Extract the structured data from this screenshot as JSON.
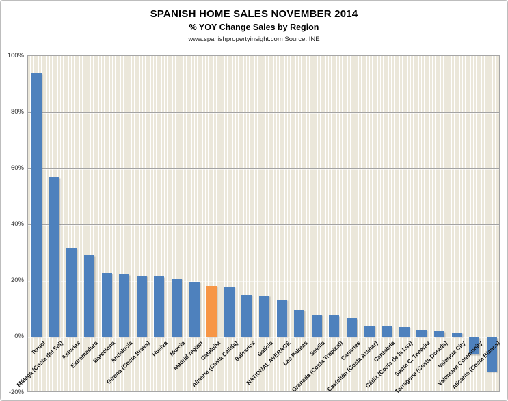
{
  "header": {
    "title": "SPANISH HOME SALES NOVEMBER 2014",
    "subtitle": "% YOY Change Sales by Region",
    "source": "www.spanishpropertyinsight.com Source: INE"
  },
  "chart_data": {
    "type": "bar",
    "title": "SPANISH HOME SALES NOVEMBER 2014",
    "subtitle": "% YOY Change Sales by Region",
    "source_note": "www.spanishpropertyinsight.com Source: INE",
    "categories": [
      "Teruel",
      "Málaga (Costa del Sol)",
      "Asturias",
      "Extremadura",
      "Barcelona",
      "Andalucía",
      "Girona (Costa Brava)",
      "Huelva",
      "Murcia",
      "Madrid region",
      "Cataluña",
      "Almería (Costa Calida)",
      "Balearics",
      "Galicia",
      "NATIONAL AVERAGE",
      "Las Palmas",
      "Sevilla",
      "Granada (Costa Tropical)",
      "Canaries",
      "Castellón (Costa Azahar)",
      "Cantabria",
      "Cádiz (Costa de la Luz)",
      "Santa C. Tenerife",
      "Tarragona (Costa Dorada)",
      "Valencia City",
      "Valencian Community",
      "Alicante (Costa Blanca)"
    ],
    "values": [
      94,
      56.9,
      31.5,
      29,
      22.6,
      22.1,
      21.8,
      21.5,
      20.7,
      19.4,
      18.1,
      17.7,
      14.9,
      14.7,
      13.2,
      9.6,
      7.9,
      7.5,
      6.5,
      4,
      3.6,
      3.5,
      2.5,
      1.9,
      1.4,
      -6,
      -12.3
    ],
    "highlight_category": "Cataluña",
    "colors": {
      "bar": "#4E81BD",
      "highlight": "#F79646",
      "plot_bg": "#EBE7DA",
      "gridline": "#A3A3A3",
      "zero_line": "#7F7F7F"
    },
    "ylabel": "",
    "xlabel": "",
    "ylim": [
      -20,
      100
    ],
    "ytick_step": 20,
    "ytick_labels": [
      "100%",
      "80%",
      "60%",
      "40%",
      "20%",
      "0%",
      "-20%"
    ],
    "grid": true,
    "legend_position": "none"
  }
}
